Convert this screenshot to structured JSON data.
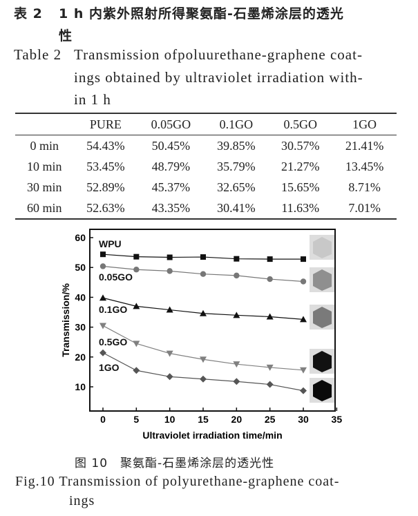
{
  "table": {
    "caption_cn_label": "表 2",
    "caption_cn_l1": "1 h 内紫外照射所得聚氨酯-石墨烯涂层的透光",
    "caption_cn_l2": "性",
    "caption_en_label": "Table 2",
    "caption_en_l1": "Transmission ofpoluurethane-graphene coat-",
    "caption_en_l2": "ings obtained by ultraviolet irradiation with-",
    "caption_en_l3": "in 1 h",
    "headers": [
      "",
      "PURE",
      "0.05GO",
      "0.1GO",
      "0.5GO",
      "1GO"
    ],
    "rows": [
      [
        "0 min",
        "54.43%",
        "50.45%",
        "39.85%",
        "30.57%",
        "21.41%"
      ],
      [
        "10 min",
        "53.45%",
        "48.79%",
        "35.79%",
        "21.27%",
        "13.45%"
      ],
      [
        "30 min",
        "52.89%",
        "45.37%",
        "32.65%",
        "15.65%",
        "8.71%"
      ],
      [
        "60 min",
        "52.63%",
        "43.35%",
        "30.41%",
        "11.63%",
        "7.01%"
      ]
    ]
  },
  "figure": {
    "caption_cn": "图 10　聚氨酯-石墨烯涂层的透光性",
    "caption_en_l1": "Fig.10 Transmission of polyurethane-graphene coat-",
    "caption_en_l2": "ings"
  },
  "chart_data": {
    "type": "line",
    "xlabel": "Ultraviolet irradiation time/min",
    "ylabel": "Transmission/%",
    "xlim": [
      -2,
      35
    ],
    "ylim": [
      1.8,
      62.5
    ],
    "xticks": [
      0,
      5,
      10,
      15,
      20,
      25,
      30,
      35
    ],
    "yticks": [
      10,
      20,
      30,
      40,
      50,
      60
    ],
    "x": [
      0,
      5,
      10,
      15,
      20,
      25,
      30
    ],
    "series": [
      {
        "name": "WPU",
        "marker": "square",
        "color": "#111111",
        "values": [
          54.4,
          53.6,
          53.4,
          53.5,
          52.9,
          52.8,
          52.8
        ]
      },
      {
        "name": "0.05GO",
        "marker": "circle",
        "color": "#777777",
        "values": [
          50.4,
          49.3,
          48.8,
          47.8,
          47.3,
          46.1,
          45.3
        ]
      },
      {
        "name": "0.1GO",
        "marker": "triangle-up",
        "color": "#111111",
        "values": [
          39.8,
          37.0,
          35.8,
          34.6,
          34.0,
          33.5,
          32.6
        ]
      },
      {
        "name": "0.5GO",
        "marker": "triangle-down",
        "color": "#808080",
        "values": [
          30.5,
          24.5,
          21.2,
          19.2,
          17.6,
          16.5,
          15.6
        ]
      },
      {
        "name": "1GO",
        "marker": "diamond",
        "color": "#555555",
        "values": [
          21.4,
          15.5,
          13.4,
          12.6,
          11.8,
          10.8,
          8.7
        ]
      }
    ]
  }
}
